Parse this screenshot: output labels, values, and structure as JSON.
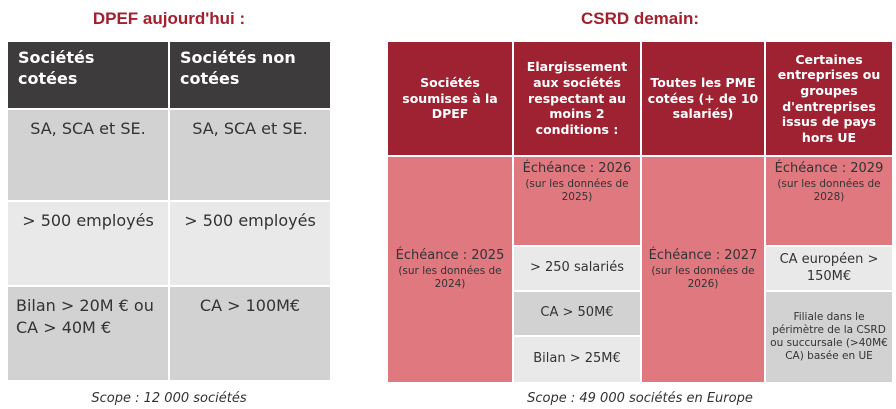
{
  "left": {
    "title": "DPEF aujourd'hui :",
    "headers": [
      "Sociétés cotées",
      "Sociétés non cotées"
    ],
    "rows": [
      [
        "SA, SCA et SE.",
        "SA, SCA et SE."
      ],
      [
        "> 500 employés",
        "> 500 employés"
      ],
      [
        "Bilan > 20M € ou CA > 40M €",
        "CA > 100M€"
      ]
    ],
    "scope": "Scope : 12 000 sociétés"
  },
  "right": {
    "title": "CSRD demain:",
    "headers": [
      "Sociétés soumises à la DPEF",
      "Elargissement aux sociétés respectant au moins 2 conditions :",
      "Toutes les PME cotées (+ de 10 salariés)",
      "Certaines entreprises ou groupes d'entreprises issus de pays hors UE"
    ],
    "columns": [
      {
        "deadline": "Échéance : 2025",
        "note": "(sur les données de 2024)"
      },
      {
        "deadline": "Échéance : 2026",
        "note": "(sur les données de 2025)",
        "criteria": [
          "> 250 salariés",
          "CA > 50M€",
          "Bilan > 25M€"
        ]
      },
      {
        "deadline": "Échéance : 2027",
        "note": "(sur les données de 2026)"
      },
      {
        "deadline": "Échéance : 2029",
        "note": "(sur les données de 2028)",
        "criteria": [
          "CA européen > 150M€",
          "Filiale dans le périmètre de la CSRD ou succursale (>40M€ CA) basée en UE"
        ]
      }
    ],
    "scope": "Scope : 49 000 sociétés en Europe"
  }
}
